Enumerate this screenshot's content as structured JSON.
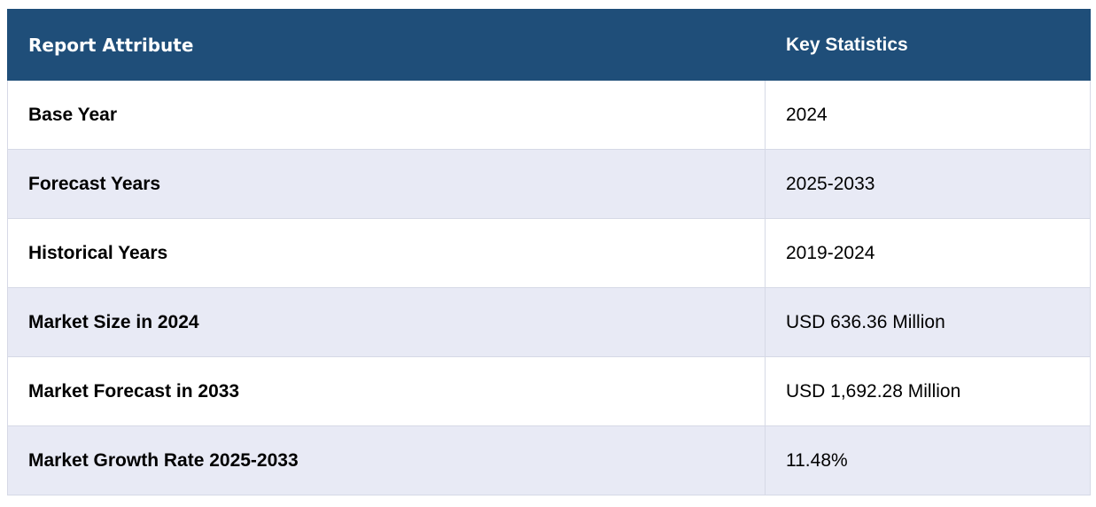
{
  "table": {
    "headers": {
      "attribute": "Report Attribute",
      "statistics": "Key Statistics"
    },
    "rows": [
      {
        "attribute": "Base Year",
        "value": "2024"
      },
      {
        "attribute": "Forecast Years",
        "value": "2025-2033"
      },
      {
        "attribute": "Historical Years",
        "value": "2019-2024"
      },
      {
        "attribute": "Market Size in 2024",
        "value": "USD 636.36 Million"
      },
      {
        "attribute": "Market Forecast in 2033",
        "value": "USD 1,692.28 Million"
      },
      {
        "attribute": "Market Growth Rate 2025-2033",
        "value": "11.48%"
      }
    ]
  },
  "colors": {
    "header_bg": "#1f4e79",
    "header_text": "#ffffff",
    "row_alt_bg": "#e8eaf5",
    "border": "#d6d9e6"
  }
}
